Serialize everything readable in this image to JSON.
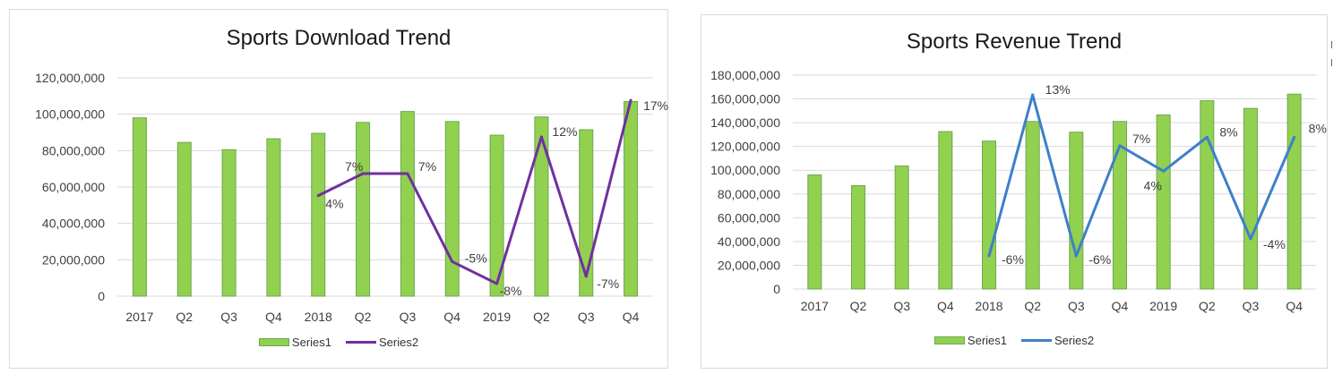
{
  "colors": {
    "bar_fill": "#92d050",
    "bar_stroke": "#6aa84f",
    "grid": "#d9d9d9",
    "axis_text": "#404040"
  },
  "chart_data": [
    {
      "type": "bar",
      "title": "Sports Download Trend",
      "categories": [
        "2017",
        "Q2",
        "Q3",
        "Q4",
        "2018",
        "Q2",
        "Q3",
        "Q4",
        "2019",
        "Q2",
        "Q3",
        "Q4"
      ],
      "ylim": [
        0,
        120000000
      ],
      "yticks": [
        "0",
        "20,000,000",
        "40,000,000",
        "60,000,000",
        "80,000,000",
        "100,000,000",
        "120,000,000"
      ],
      "grid": true,
      "legend_position": "bottom",
      "series": [
        {
          "name": "Series1",
          "kind": "bar",
          "color": "#92d050",
          "values": [
            98000000,
            84500000,
            80500000,
            86500000,
            89500000,
            95500000,
            101500000,
            96000000,
            88500000,
            98500000,
            91500000,
            107000000
          ]
        },
        {
          "name": "Series2",
          "kind": "line",
          "color": "#7030a0",
          "display_values": [
            null,
            null,
            null,
            null,
            4,
            7,
            7,
            -5,
            -8,
            12,
            -7,
            17
          ],
          "labels": [
            null,
            null,
            null,
            null,
            "4%",
            "7%",
            "7%",
            "-5%",
            "-8%",
            "12%",
            "-7%",
            "17%"
          ]
        }
      ]
    },
    {
      "type": "bar",
      "title": "Sports Revenue Trend",
      "categories": [
        "2017",
        "Q2",
        "Q3",
        "Q4",
        "2018",
        "Q2",
        "Q3",
        "Q4",
        "2019",
        "Q2",
        "Q3",
        "Q4"
      ],
      "ylim": [
        0,
        180000000
      ],
      "yticks": [
        "0",
        "20,000,000",
        "40,000,000",
        "60,000,000",
        "80,000,000",
        "100,000,000",
        "120,000,000",
        "140,000,000",
        "160,000,000",
        "180,000,000"
      ],
      "grid": true,
      "legend_position": "bottom",
      "series": [
        {
          "name": "Series1",
          "kind": "bar",
          "color": "#92d050",
          "values": [
            96000000,
            87000000,
            103500000,
            132500000,
            124500000,
            141000000,
            132000000,
            141000000,
            146500000,
            158500000,
            152000000,
            164000000
          ]
        },
        {
          "name": "Series2",
          "kind": "line",
          "color": "#3f7fca",
          "display_values": [
            null,
            null,
            null,
            null,
            -6,
            13,
            -6,
            7,
            4,
            8,
            -4,
            8
          ],
          "labels": [
            null,
            null,
            null,
            null,
            "-6%",
            "13%",
            "-6%",
            "7%",
            "4%",
            "8%",
            "-4%",
            "8%"
          ]
        }
      ]
    }
  ]
}
